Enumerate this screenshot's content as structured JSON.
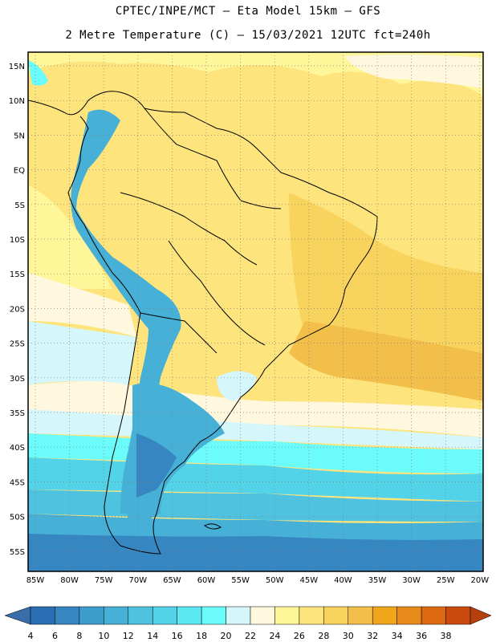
{
  "header": {
    "line1": "CPTEC/INPE/MCT –  Eta Model 15km – GFS",
    "line2": "2 Metre Temperature (C) – 15/03/2021 12UTC fct=240h"
  },
  "map": {
    "lat_labels": [
      "15N",
      "10N",
      "5N",
      "EQ",
      "5S",
      "10S",
      "15S",
      "20S",
      "25S",
      "30S",
      "35S",
      "40S",
      "45S",
      "50S",
      "55S"
    ],
    "lon_labels": [
      "85W",
      "80W",
      "75W",
      "70W",
      "65W",
      "60W",
      "55W",
      "50W",
      "45W",
      "40W",
      "35W",
      "30W",
      "25W",
      "20W"
    ],
    "lat_range": [
      -58,
      16
    ],
    "lon_range": [
      -86,
      -20
    ]
  },
  "colorbar": {
    "labels": [
      "4",
      "6",
      "8",
      "10",
      "12",
      "14",
      "16",
      "18",
      "20",
      "22",
      "24",
      "26",
      "28",
      "30",
      "32",
      "34",
      "36",
      "38"
    ],
    "colors": [
      "#2a6eb3",
      "#3686c2",
      "#3c9dcc",
      "#46b0d6",
      "#4ec2df",
      "#52d3e8",
      "#5ce8f2",
      "#6cfbfb",
      "#d5f7fb",
      "#fff8de",
      "#fff599",
      "#fde47c",
      "#f8d45e",
      "#f2c04a",
      "#f0a61a",
      "#e88a1c",
      "#dd6812",
      "#c94a0c"
    ],
    "below_color": "#3a6eaa",
    "above_color": "#b5400c"
  }
}
